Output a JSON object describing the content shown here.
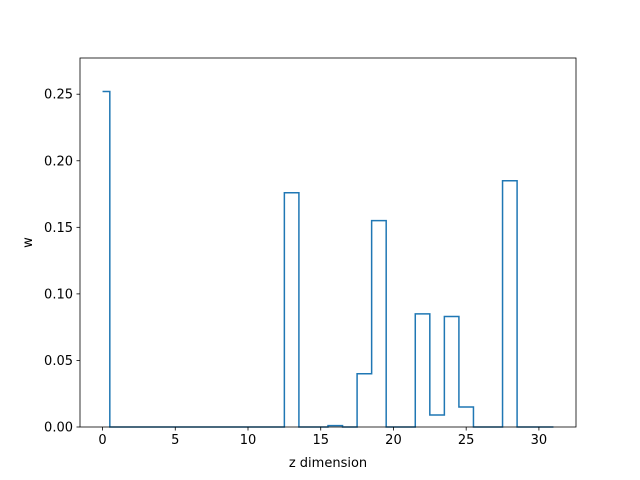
{
  "chart_data": {
    "type": "line",
    "drawstyle": "steps-mid",
    "title": "",
    "xlabel": "z dimension",
    "ylabel": "w",
    "xlim": [
      -1.55,
      32.55
    ],
    "ylim": [
      0,
      0.2772
    ],
    "xticks": [
      0,
      5,
      10,
      15,
      20,
      25,
      30
    ],
    "xtick_labels": [
      "0",
      "5",
      "10",
      "15",
      "20",
      "25",
      "30"
    ],
    "yticks": [
      0,
      0.05,
      0.1,
      0.15,
      0.2,
      0.25
    ],
    "ytick_labels": [
      "0.00",
      "0.05",
      "0.10",
      "0.15",
      "0.20",
      "0.25"
    ],
    "grid": false,
    "legend": "none",
    "line_color": "#1f77b4",
    "series": [
      {
        "x": [
          0,
          1,
          2,
          3,
          4,
          5,
          6,
          7,
          8,
          9,
          10,
          11,
          12,
          13,
          14,
          15,
          16,
          17,
          18,
          19,
          20,
          21,
          22,
          23,
          24,
          25,
          26,
          27,
          28,
          29,
          30,
          31
        ],
        "values": [
          0.252,
          0,
          0,
          0,
          0,
          0,
          0,
          0,
          0,
          0,
          0,
          0,
          0,
          0.176,
          0,
          0,
          0.001,
          0,
          0.04,
          0.155,
          0,
          0,
          0.085,
          0.009,
          0.083,
          0.015,
          0,
          0,
          0.185,
          0,
          0,
          0
        ]
      }
    ]
  }
}
